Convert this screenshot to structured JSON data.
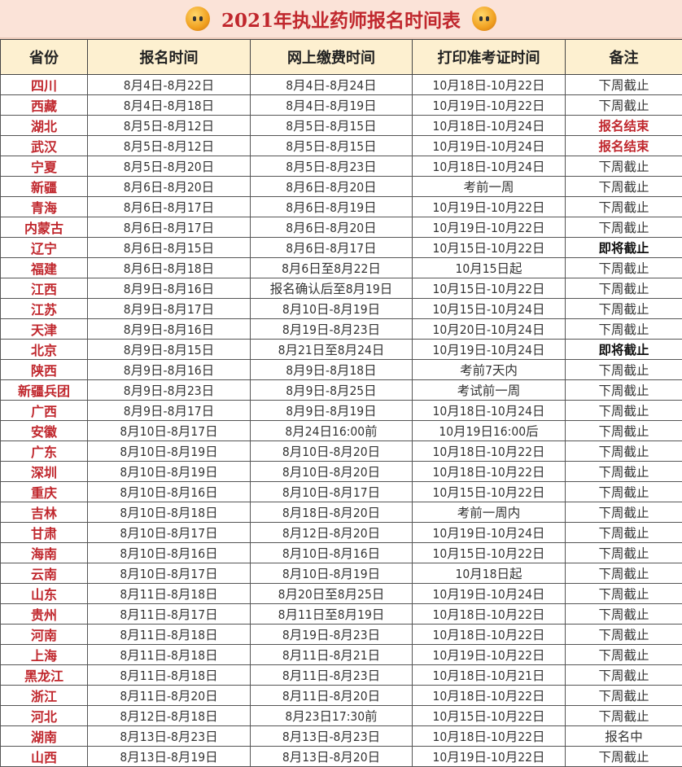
{
  "title": "2021年执业药师报名时间表",
  "colors": {
    "accent_red": "#c0272d",
    "title_bg": "#fbe3d8",
    "header_bg": "#fdf0d0"
  },
  "headers": [
    "省份",
    "报名时间",
    "网上缴费时间",
    "打印准考证时间",
    "备注"
  ],
  "rows": [
    [
      "四川",
      "8月4日-8月22日",
      "8月4日-8月24日",
      "10月18日-10月22日",
      "下周截止"
    ],
    [
      "西藏",
      "8月4日-8月18日",
      "8月4日-8月19日",
      "10月19日-10月22日",
      "下周截止"
    ],
    [
      "湖北",
      "8月5日-8月12日",
      "8月5日-8月15日",
      "10月18日-10月24日",
      "报名结束"
    ],
    [
      "武汉",
      "8月5日-8月12日",
      "8月5日-8月15日",
      "10月19日-10月24日",
      "报名结束"
    ],
    [
      "宁夏",
      "8月5日-8月20日",
      "8月5日-8月23日",
      "10月18日-10月24日",
      "下周截止"
    ],
    [
      "新疆",
      "8月6日-8月20日",
      "8月6日-8月20日",
      "考前一周",
      "下周截止"
    ],
    [
      "青海",
      "8月6日-8月17日",
      "8月6日-8月19日",
      "10月19日-10月22日",
      "下周截止"
    ],
    [
      "内蒙古",
      "8月6日-8月17日",
      "8月6日-8月20日",
      "10月19日-10月22日",
      "下周截止"
    ],
    [
      "辽宁",
      "8月6日-8月15日",
      "8月6日-8月17日",
      "10月15日-10月22日",
      "即将截止"
    ],
    [
      "福建",
      "8月6日-8月18日",
      "8月6日至8月22日",
      "10月15日起",
      "下周截止"
    ],
    [
      "江西",
      "8月9日-8月16日",
      "报名确认后至8月19日",
      "10月15日-10月22日",
      "下周截止"
    ],
    [
      "江苏",
      "8月9日-8月17日",
      "8月10日-8月19日",
      "10月15日-10月24日",
      "下周截止"
    ],
    [
      "天津",
      "8月9日-8月16日",
      "8月19日-8月23日",
      "10月20日-10月24日",
      "下周截止"
    ],
    [
      "北京",
      "8月9日-8月15日",
      "8月21日至8月24日",
      "10月19日-10月24日",
      "即将截止"
    ],
    [
      "陕西",
      "8月9日-8月16日",
      "8月9日-8月18日",
      "考前7天内",
      "下周截止"
    ],
    [
      "新疆兵团",
      "8月9日-8月23日",
      "8月9日-8月25日",
      "考试前一周",
      "下周截止"
    ],
    [
      "广西",
      "8月9日-8月17日",
      "8月9日-8月19日",
      "10月18日-10月24日",
      "下周截止"
    ],
    [
      "安徽",
      "8月10日-8月17日",
      "8月24日16:00前",
      "10月19日16:00后",
      "下周截止"
    ],
    [
      "广东",
      "8月10日-8月19日",
      "8月10日-8月20日",
      "10月18日-10月22日",
      "下周截止"
    ],
    [
      "深圳",
      "8月10日-8月19日",
      "8月10日-8月20日",
      "10月18日-10月22日",
      "下周截止"
    ],
    [
      "重庆",
      "8月10日-8月16日",
      "8月10日-8月17日",
      "10月15日-10月22日",
      "下周截止"
    ],
    [
      "吉林",
      "8月10日-8月18日",
      "8月18日-8月20日",
      "考前一周内",
      "下周截止"
    ],
    [
      "甘肃",
      "8月10日-8月17日",
      "8月12日-8月20日",
      "10月19日-10月24日",
      "下周截止"
    ],
    [
      "海南",
      "8月10日-8月16日",
      "8月10日-8月16日",
      "10月15日-10月22日",
      "下周截止"
    ],
    [
      "云南",
      "8月10日-8月17日",
      "8月10日-8月19日",
      "10月18日起",
      "下周截止"
    ],
    [
      "山东",
      "8月11日-8月18日",
      "8月20日至8月25日",
      "10月19日-10月24日",
      "下周截止"
    ],
    [
      "贵州",
      "8月11日-8月17日",
      "8月11日至8月19日",
      "10月18日-10月22日",
      "下周截止"
    ],
    [
      "河南",
      "8月11日-8月18日",
      "8月19日-8月23日",
      "10月18日-10月22日",
      "下周截止"
    ],
    [
      "上海",
      "8月11日-8月18日",
      "8月11日-8月21日",
      "10月19日-10月22日",
      "下周截止"
    ],
    [
      "黑龙江",
      "8月11日-8月18日",
      "8月11日-8月23日",
      "10月18日-10月21日",
      "下周截止"
    ],
    [
      "浙江",
      "8月11日-8月20日",
      "8月11日-8月20日",
      "10月18日-10月22日",
      "下周截止"
    ],
    [
      "河北",
      "8月12日-8月18日",
      "8月23日17:30前",
      "10月15日-10月22日",
      "下周截止"
    ],
    [
      "湖南",
      "8月13日-8月23日",
      "8月13日-8月23日",
      "10月18日-10月22日",
      "报名中"
    ],
    [
      "山西",
      "8月13日-8月19日",
      "8月13日-8月20日",
      "10月19日-10月22日",
      "下周截止"
    ]
  ]
}
